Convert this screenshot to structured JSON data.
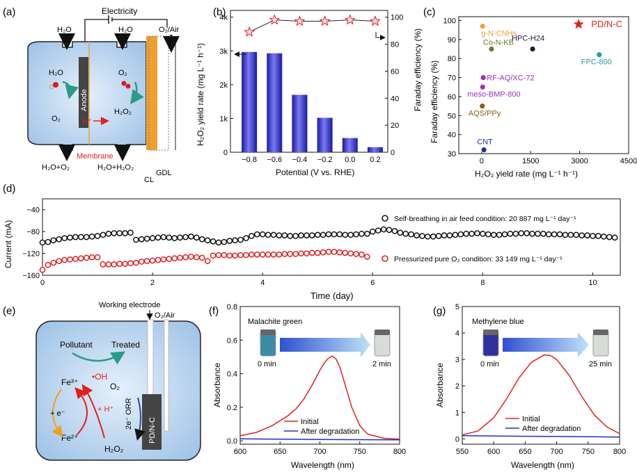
{
  "panels": {
    "a": {
      "label": "(a)",
      "electricity": "Electricity",
      "h2o_in_left": "H₂O",
      "h2o_in_mid": "H₂O",
      "o2air": "O₂/Air",
      "h2o_mol": "H₂O",
      "o2_left": "O₂",
      "o2_right": "O₂",
      "h2o2_mid": "H₂O₂",
      "anode": "Anode",
      "hplus": "H⁺",
      "membrane": "Membrane",
      "out_left": "H₂O+O₂",
      "out_mid": "H₂O+H₂O₂",
      "cl": "CL",
      "gdl": "GDL"
    },
    "e": {
      "label": "(e)",
      "working_electrode": "Working electrode",
      "o2air": "O₂/Air",
      "pollutant": "Pollutant",
      "treated": "Treated",
      "oh": "•OH",
      "fe3": "Fe³⁺",
      "fe2": "Fe²⁺",
      "plus_e": "+ e⁻",
      "plus_h": "+ H⁺",
      "o2": "O₂",
      "orr": "2e⁻ ORR",
      "h2o2": "H₂O₂",
      "electrode": "PD/N-C"
    }
  },
  "chart_data": [
    {
      "panel": "(b)",
      "type": "bar",
      "categories": [
        "-0.8",
        "-0.6",
        "-0.4",
        "-0.2",
        "0.0",
        "0.2"
      ],
      "x": [
        -0.8,
        -0.6,
        -0.4,
        -0.2,
        0.0,
        0.2
      ],
      "values": [
        2970,
        2930,
        1700,
        1020,
        420,
        150
      ],
      "secondary_series": {
        "name": "Faraday efficiency",
        "marker": "star",
        "values": [
          89,
          98,
          97,
          97,
          98,
          97
        ]
      },
      "xlabel": "Potential (V vs. RHE)",
      "ylabel": "H₂O₂ yield rate (mg L⁻¹ h⁻¹)",
      "y2label": "Faraday efficiency (%)",
      "xlim": [
        -0.95,
        0.3
      ],
      "ylim": [
        0,
        4200
      ],
      "y2lim": [
        0,
        105
      ],
      "xticks": [
        "-0.8",
        "-0.6",
        "-0.4",
        "-0.2",
        "0.0",
        "0.2"
      ],
      "yticks": [
        "0",
        "1k",
        "2k",
        "3k",
        "4k"
      ],
      "y2ticks": [
        "0",
        "20",
        "40",
        "60",
        "80",
        "100"
      ]
    },
    {
      "panel": "(c)",
      "type": "scatter",
      "xlabel": "H₂O₂ yield rate (mg L⁻¹ h⁻¹)",
      "ylabel": "Faraday efficiency (%)",
      "xlim": [
        -700,
        4500
      ],
      "ylim": [
        30,
        102
      ],
      "xticks": [
        "0",
        "1500",
        "3000",
        "4500"
      ],
      "yticks": [
        "30",
        "40",
        "50",
        "60",
        "70",
        "80",
        "90",
        "100"
      ],
      "points": [
        {
          "name": "PD/N-C",
          "x": 2970,
          "y": 98,
          "color": "#e02020",
          "marker": "star"
        },
        {
          "name": "g-N-CNHs",
          "x": 30,
          "y": 97,
          "color": "#f0a030"
        },
        {
          "name": "Co-N-KB",
          "x": 300,
          "y": 85,
          "color": "#6b7a1a"
        },
        {
          "name": "HPC-H24",
          "x": 1560,
          "y": 85,
          "color": "#1a1a3a"
        },
        {
          "name": "FPC-800",
          "x": 3600,
          "y": 82,
          "color": "#2a9a9a"
        },
        {
          "name": "RF-AQ/XC-72",
          "x": 50,
          "y": 70,
          "color": "#9a30c0"
        },
        {
          "name": "meso-BMP-800",
          "x": 30,
          "y": 65,
          "color": "#9a30c0"
        },
        {
          "name": "AQS/PPy",
          "x": 20,
          "y": 55,
          "color": "#8a5a20"
        },
        {
          "name": "CNT",
          "x": 70,
          "y": 32,
          "color": "#2030a0"
        }
      ]
    },
    {
      "panel": "(d)",
      "type": "scatter",
      "xlabel": "Time (day)",
      "ylabel": "Current (mA)",
      "xlim": [
        0,
        10.5
      ],
      "ylim": [
        -160,
        -20
      ],
      "xticks": [
        "0",
        "2",
        "4",
        "6",
        "8",
        "10"
      ],
      "yticks": [
        "-160",
        "-120",
        "-80",
        "-40"
      ],
      "series": [
        {
          "name": "Self-breathing in air feed condition: 20 887 mg L⁻¹ day⁻¹",
          "color": "#111111",
          "t": [
            0.0,
            0.1,
            0.2,
            0.3,
            0.4,
            0.5,
            0.6,
            0.7,
            0.8,
            0.9,
            1.0,
            1.1,
            1.2,
            1.3,
            1.4,
            1.5,
            1.6,
            1.7,
            1.8,
            1.9,
            2.0,
            2.1,
            2.2,
            2.3,
            2.4,
            2.5,
            2.6,
            2.7,
            2.8,
            2.9,
            3.0,
            3.1,
            3.2,
            3.3,
            3.4,
            3.5,
            3.6,
            3.7,
            3.8,
            3.9,
            4.0,
            4.1,
            4.2,
            4.3,
            4.4,
            4.5,
            4.6,
            4.7,
            4.8,
            4.9,
            5.0,
            5.1,
            5.2,
            5.3,
            5.4,
            5.5,
            5.6,
            5.7,
            5.8,
            5.9,
            6.0,
            6.1,
            6.2,
            6.3,
            6.4,
            6.5,
            6.6,
            6.7,
            6.8,
            6.9,
            7.0,
            7.1,
            7.2,
            7.3,
            7.4,
            7.5,
            7.6,
            7.7,
            7.8,
            7.9,
            8.0,
            8.1,
            8.2,
            8.3,
            8.4,
            8.5,
            8.6,
            8.7,
            8.8,
            8.9,
            9.0,
            9.1,
            9.2,
            9.3,
            9.4,
            9.5,
            9.6,
            9.7,
            9.8,
            9.9,
            10.0,
            10.1,
            10.2,
            10.3,
            10.4
          ],
          "i": [
            -100,
            -99,
            -96,
            -94,
            -92,
            -91,
            -90,
            -90,
            -90,
            -89,
            -88,
            -86,
            -84,
            -83,
            -83,
            -83,
            -82,
            -95,
            -94,
            -93,
            -92,
            -91,
            -90,
            -91,
            -92,
            -91,
            -90,
            -89,
            -91,
            -94,
            -96,
            -98,
            -100,
            -99,
            -97,
            -96,
            -95,
            -92,
            -88,
            -85,
            -85,
            -86,
            -86,
            -87,
            -87,
            -88,
            -88,
            -87,
            -87,
            -87,
            -86,
            -86,
            -85,
            -85,
            -85,
            -86,
            -86,
            -85,
            -84,
            -84,
            -80,
            -78,
            -76,
            -77,
            -79,
            -82,
            -84,
            -85,
            -87,
            -88,
            -89,
            -89,
            -88,
            -87,
            -87,
            -86,
            -85,
            -84,
            -84,
            -83,
            -84,
            -85,
            -86,
            -86,
            -85,
            -84,
            -84,
            -83,
            -83,
            -84,
            -84,
            -84,
            -85,
            -85,
            -85,
            -86,
            -86,
            -86,
            -87,
            -87,
            -88,
            -88,
            -89,
            -90,
            -91,
            -91
          ]
        },
        {
          "name": "Pressurized pure O₂ condition: 33 149 mg L⁻¹ day⁻¹",
          "color": "#e02020",
          "t": [
            0.0,
            0.1,
            0.2,
            0.3,
            0.4,
            0.5,
            0.6,
            0.7,
            0.8,
            0.9,
            1.0,
            1.1,
            1.2,
            1.3,
            1.4,
            1.5,
            1.6,
            1.7,
            1.8,
            1.9,
            2.0,
            2.1,
            2.2,
            2.3,
            2.4,
            2.5,
            2.6,
            2.7,
            2.8,
            2.9,
            3.0,
            3.1,
            3.2,
            3.3,
            3.4,
            3.5,
            3.6,
            3.7,
            3.8,
            3.9,
            4.0,
            4.1,
            4.2,
            4.3,
            4.4,
            4.5,
            4.6,
            4.7,
            4.8,
            4.9,
            5.0,
            5.1,
            5.2,
            5.3,
            5.4,
            5.5,
            5.6,
            5.7,
            5.8,
            5.9
          ],
          "i": [
            -150,
            -141,
            -137,
            -134,
            -132,
            -131,
            -130,
            -129,
            -128,
            -127,
            -127,
            -140,
            -140,
            -140,
            -139,
            -139,
            -138,
            -137,
            -135,
            -134,
            -133,
            -132,
            -131,
            -130,
            -129,
            -128,
            -127,
            -126,
            -127,
            -128,
            -134,
            -124,
            -123,
            -123,
            -124,
            -124,
            -123,
            -123,
            -122,
            -122,
            -122,
            -122,
            -122,
            -122,
            -121,
            -121,
            -121,
            -120,
            -120,
            -119,
            -119,
            -118,
            -117,
            -117,
            -118,
            -119,
            -120,
            -121,
            -122,
            -126
          ]
        }
      ]
    },
    {
      "panel": "(f)",
      "type": "line",
      "title": "Malachite green",
      "xlabel": "Wavelength (nm)",
      "ylabel": "Absorbance",
      "xlim": [
        600,
        800
      ],
      "ylim": [
        -0.02,
        0.8
      ],
      "xticks": [
        "600",
        "650",
        "700",
        "750",
        "800"
      ],
      "yticks": [
        "0.0",
        "0.2",
        "0.4",
        "0.6",
        "0.8"
      ],
      "series": [
        {
          "name": "Initial",
          "color": "#e02020",
          "x": [
            600,
            620,
            640,
            660,
            670,
            680,
            690,
            700,
            705,
            710,
            715,
            720,
            725,
            730,
            740,
            750,
            760,
            780,
            800
          ],
          "y": [
            0.03,
            0.05,
            0.09,
            0.15,
            0.19,
            0.25,
            0.33,
            0.42,
            0.46,
            0.49,
            0.505,
            0.49,
            0.44,
            0.36,
            0.2,
            0.09,
            0.04,
            0.015,
            0.01
          ]
        },
        {
          "name": "After degradation",
          "color": "#2030c0",
          "x": [
            600,
            650,
            700,
            750,
            800
          ],
          "y": [
            0.012,
            0.01,
            0.008,
            0.007,
            0.006
          ]
        }
      ],
      "annotations": [
        "0 min",
        "2 min"
      ]
    },
    {
      "panel": "(g)",
      "type": "line",
      "title": "Methylene blue",
      "xlabel": "Wavelength (nm)",
      "ylabel": "Absorbance",
      "xlim": [
        550,
        800
      ],
      "ylim": [
        -0.2,
        5
      ],
      "xticks": [
        "550",
        "600",
        "650",
        "700",
        "750",
        "800"
      ],
      "yticks": [
        "0",
        "1",
        "2",
        "3",
        "4",
        "5"
      ],
      "series": [
        {
          "name": "Initial",
          "color": "#e02020",
          "x": [
            550,
            575,
            600,
            620,
            640,
            660,
            680,
            690,
            700,
            720,
            740,
            760,
            780,
            800
          ],
          "y": [
            0.15,
            0.3,
            0.8,
            1.5,
            2.3,
            2.9,
            3.17,
            3.15,
            3.0,
            2.4,
            1.6,
            0.9,
            0.45,
            0.2
          ]
        },
        {
          "name": "After degradation",
          "color": "#2030c0",
          "x": [
            550,
            650,
            750,
            800
          ],
          "y": [
            0.12,
            0.1,
            0.08,
            0.07
          ]
        }
      ],
      "annotations": [
        "0 min",
        "25 min"
      ]
    }
  ]
}
